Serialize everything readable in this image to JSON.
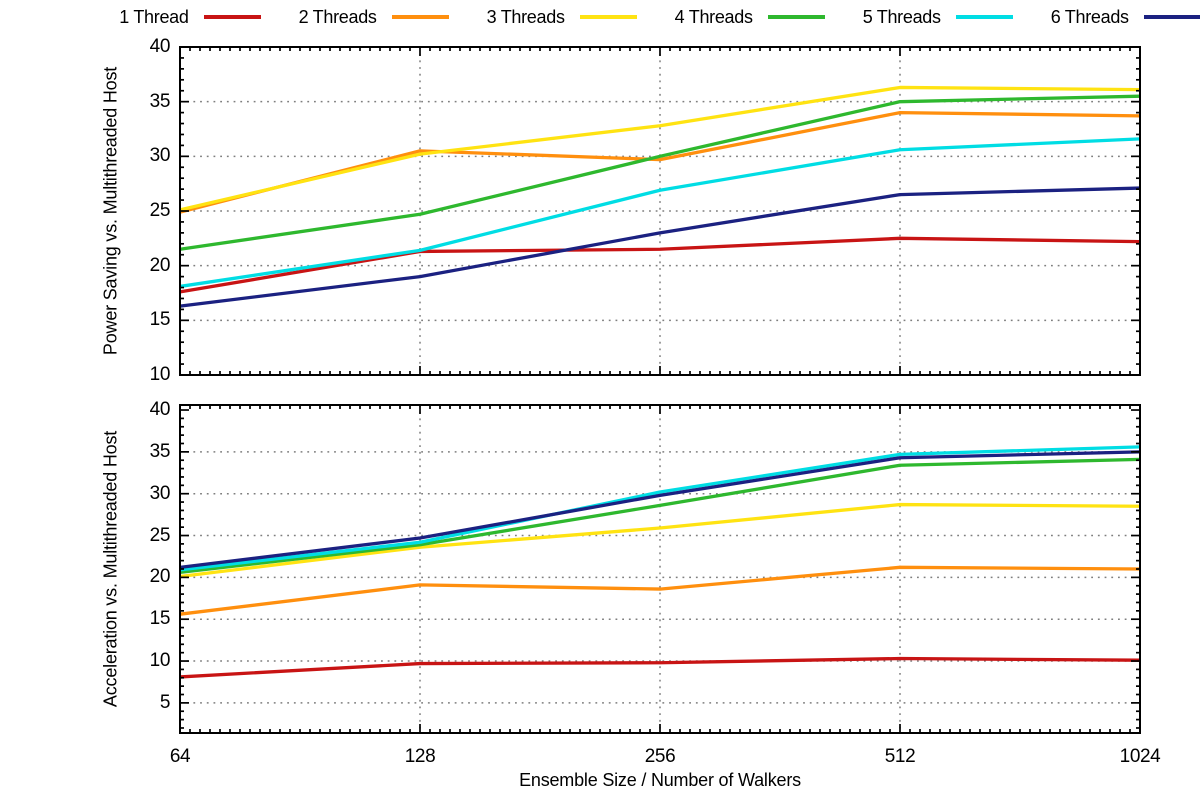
{
  "page": {
    "background": "#ffffff"
  },
  "colors": {
    "frame": "#000000",
    "grid": "#7e7e7e",
    "text": "#000000"
  },
  "legend": {
    "position": "top",
    "items": [
      {
        "label": "1 Thread",
        "color": "#c81414"
      },
      {
        "label": "2 Threads",
        "color": "#ff8f0e"
      },
      {
        "label": "3 Threads",
        "color": "#ffe312"
      },
      {
        "label": "4 Threads",
        "color": "#2eb82e"
      },
      {
        "label": "5 Threads",
        "color": "#00dde4"
      },
      {
        "label": "6 Threads",
        "color": "#1b2181"
      }
    ]
  },
  "chart_data": [
    {
      "type": "line",
      "name": "power-saving-chart",
      "title": "",
      "ylabel": "Power Saving vs. Multithreaded Host",
      "xlabel": "",
      "x_scale": "log2",
      "xlim": [
        64,
        1024
      ],
      "x": [
        64,
        128,
        256,
        512,
        1024
      ],
      "xticks": [
        64,
        128,
        256,
        512,
        1024
      ],
      "grid_xticks": [
        128,
        256,
        512
      ],
      "ylim": [
        10,
        40
      ],
      "yticks": [
        10,
        15,
        20,
        25,
        30,
        35,
        40
      ],
      "grid_yticks": [
        15,
        20,
        25,
        30,
        35
      ],
      "grid": true,
      "series": [
        {
          "name": "1 Thread",
          "color": "#c81414",
          "values": [
            17.6,
            21.3,
            21.5,
            22.5,
            22.2
          ]
        },
        {
          "name": "2 Threads",
          "color": "#ff8f0e",
          "values": [
            24.9,
            30.5,
            29.7,
            34.0,
            33.7
          ]
        },
        {
          "name": "3 Threads",
          "color": "#ffe312",
          "values": [
            25.1,
            30.2,
            32.8,
            36.3,
            36.1
          ]
        },
        {
          "name": "4 Threads",
          "color": "#2eb82e",
          "values": [
            21.5,
            24.7,
            30.0,
            35.0,
            35.5
          ]
        },
        {
          "name": "5 Threads",
          "color": "#00dde4",
          "values": [
            18.1,
            21.4,
            26.9,
            30.6,
            31.6
          ]
        },
        {
          "name": "6 Threads",
          "color": "#1b2181",
          "values": [
            16.3,
            19.0,
            23.0,
            26.5,
            27.1
          ]
        }
      ]
    },
    {
      "type": "line",
      "name": "acceleration-chart",
      "title": "",
      "ylabel": "Acceleration vs. Multithreaded Host",
      "xlabel": "Ensemble Size / Number of Walkers",
      "x_scale": "log2",
      "xlim": [
        64,
        1024
      ],
      "x": [
        64,
        128,
        256,
        512,
        1024
      ],
      "xticks": [
        64,
        128,
        256,
        512,
        1024
      ],
      "xticklabels": [
        "64",
        "128",
        "256",
        "512",
        "1024"
      ],
      "grid_xticks": [
        128,
        256,
        512
      ],
      "ylim": [
        1.4,
        40.6
      ],
      "yticks": [
        5,
        10,
        15,
        20,
        25,
        30,
        35,
        40
      ],
      "grid_yticks": [
        5,
        10,
        15,
        20,
        25,
        30,
        35
      ],
      "grid": true,
      "series": [
        {
          "name": "1 Thread",
          "color": "#c81414",
          "values": [
            8.1,
            9.7,
            9.8,
            10.3,
            10.1
          ]
        },
        {
          "name": "2 Threads",
          "color": "#ff8f0e",
          "values": [
            15.6,
            19.1,
            18.6,
            21.2,
            21.0
          ]
        },
        {
          "name": "3 Threads",
          "color": "#ffe312",
          "values": [
            20.1,
            23.6,
            25.9,
            28.7,
            28.5
          ]
        },
        {
          "name": "4 Threads",
          "color": "#2eb82e",
          "values": [
            20.6,
            23.9,
            28.6,
            33.4,
            34.1
          ]
        },
        {
          "name": "5 Threads",
          "color": "#00dde4",
          "values": [
            20.9,
            24.2,
            30.2,
            34.7,
            35.6
          ]
        },
        {
          "name": "6 Threads",
          "color": "#1b2181",
          "values": [
            21.2,
            24.7,
            29.8,
            34.3,
            35.0
          ]
        }
      ]
    }
  ]
}
